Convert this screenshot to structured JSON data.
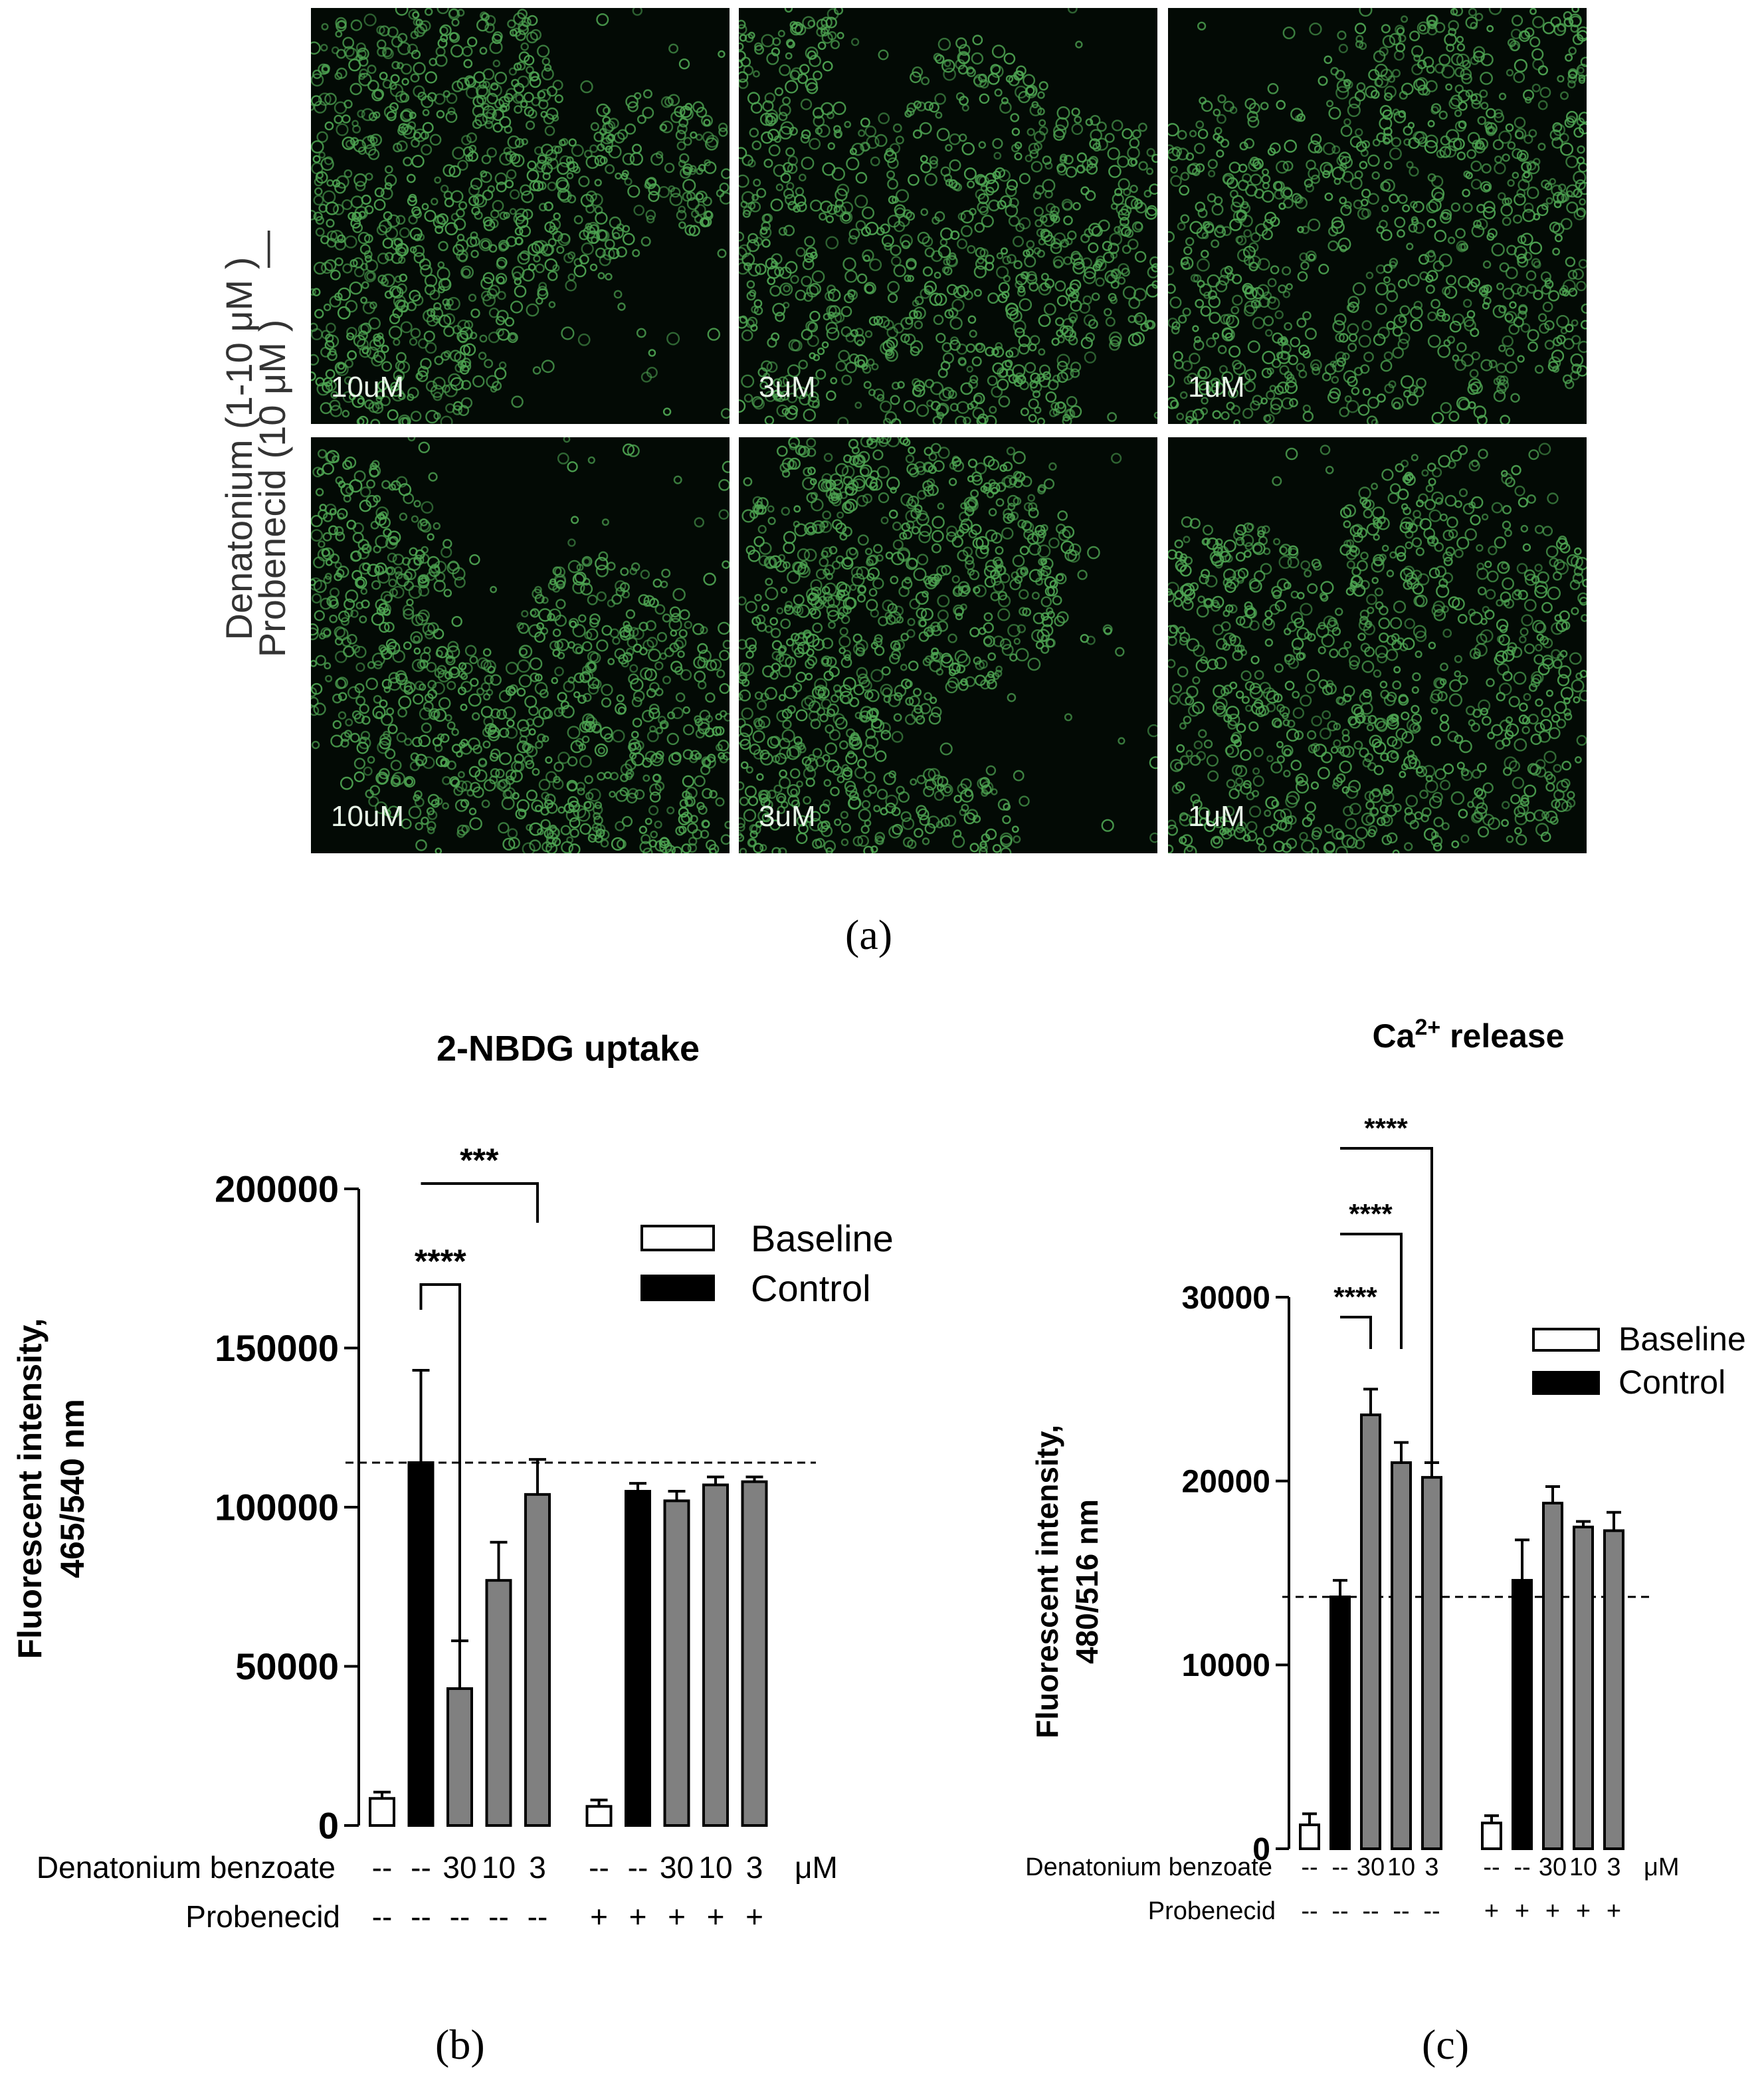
{
  "panel_a": {
    "letter": "(a)",
    "row_label_top_1": "Denatonium (1-10 μM )",
    "row_label_top_2": "—",
    "row_label_bottom": "Probenecid (10 μM )",
    "tiles": [
      {
        "label": "10uM"
      },
      {
        "label": "3uM"
      },
      {
        "label": "1uM"
      },
      {
        "label": "10uM"
      },
      {
        "label": "3uM"
      },
      {
        "label": "1uM"
      }
    ],
    "colors": {
      "fluor": "#4fa653",
      "bg": "#030a05"
    }
  },
  "panel_b": {
    "letter": "(b)"
  },
  "panel_c": {
    "letter": "(c)"
  },
  "chart_data": [
    {
      "type": "bar",
      "title": "2-NBDG uptake",
      "ylabel_line1": "Fluorescent intensity,",
      "ylabel_line2": "465/540 nm",
      "ylim": [
        0,
        200000
      ],
      "yticks": [
        0,
        50000,
        100000,
        150000,
        200000
      ],
      "ytick_labels": [
        "0",
        "50000",
        "100000",
        "150000",
        "200000"
      ],
      "legend": [
        {
          "name": "Baseline",
          "fill": "#ffffff"
        },
        {
          "name": "Control",
          "fill": "#000000"
        }
      ],
      "bars": [
        {
          "value": 8500,
          "err": 2000,
          "kind": "baseline"
        },
        {
          "value": 114000,
          "err": 29000,
          "kind": "control"
        },
        {
          "value": 43000,
          "err": 15000,
          "kind": "treated"
        },
        {
          "value": 77000,
          "err": 12000,
          "kind": "treated"
        },
        {
          "value": 104000,
          "err": 11000,
          "kind": "treated"
        },
        {
          "value": 6000,
          "err": 2000,
          "kind": "baseline"
        },
        {
          "value": 105000,
          "err": 2500,
          "kind": "control"
        },
        {
          "value": 102000,
          "err": 3000,
          "kind": "treated"
        },
        {
          "value": 107000,
          "err": 2500,
          "kind": "treated"
        },
        {
          "value": 108000,
          "err": 1500,
          "kind": "treated"
        }
      ],
      "reference_line": 114000,
      "row1_label": "Denatonium benzoate",
      "row1_values": [
        "--",
        "--",
        "30",
        "10",
        "3",
        "--",
        "--",
        "30",
        "10",
        "3"
      ],
      "row1_unit": "μM",
      "row2_label": "Probenecid",
      "row2_values": [
        "--",
        "--",
        "--",
        "--",
        "--",
        "+",
        "+",
        "+",
        "+",
        "+"
      ],
      "significance": [
        {
          "from": 1,
          "to": 2,
          "label": "****"
        },
        {
          "from": 1,
          "to": 4,
          "label": "***"
        }
      ],
      "colors": {
        "treated": "#808080",
        "control": "#000000",
        "baseline": "#ffffff"
      }
    },
    {
      "type": "bar",
      "title": "Ca",
      "title_sup": "2+",
      "title_rest": " release",
      "ylabel_line1": "Fluorescent intensity,",
      "ylabel_line2": "480/516 nm",
      "ylim": [
        0,
        30000
      ],
      "yticks": [
        0,
        10000,
        20000,
        30000
      ],
      "ytick_labels": [
        "0",
        "10000",
        "20000",
        "30000"
      ],
      "legend": [
        {
          "name": "Baseline",
          "fill": "#ffffff"
        },
        {
          "name": "Control",
          "fill": "#000000"
        }
      ],
      "bars": [
        {
          "value": 1300,
          "err": 600,
          "kind": "baseline"
        },
        {
          "value": 13700,
          "err": 900,
          "kind": "control"
        },
        {
          "value": 23600,
          "err": 1400,
          "kind": "treated"
        },
        {
          "value": 21000,
          "err": 1100,
          "kind": "treated"
        },
        {
          "value": 20200,
          "err": 800,
          "kind": "treated"
        },
        {
          "value": 1400,
          "err": 400,
          "kind": "baseline"
        },
        {
          "value": 14600,
          "err": 2200,
          "kind": "control"
        },
        {
          "value": 18800,
          "err": 900,
          "kind": "treated"
        },
        {
          "value": 17500,
          "err": 300,
          "kind": "treated"
        },
        {
          "value": 17300,
          "err": 1000,
          "kind": "treated"
        }
      ],
      "reference_line": 13700,
      "row1_label": "Denatonium benzoate",
      "row1_values": [
        "--",
        "--",
        "30",
        "10",
        "3",
        "--",
        "--",
        "30",
        "10",
        "3"
      ],
      "row1_unit": "μM",
      "row2_label": "Probenecid",
      "row2_values": [
        "--",
        "--",
        "--",
        "--",
        "--",
        "+",
        "+",
        "+",
        "+",
        "+"
      ],
      "significance": [
        {
          "from": 1,
          "to": 2,
          "label": "****"
        },
        {
          "from": 1,
          "to": 3,
          "label": "****"
        },
        {
          "from": 1,
          "to": 4,
          "label": "****"
        }
      ],
      "colors": {
        "treated": "#808080",
        "control": "#000000",
        "baseline": "#ffffff"
      }
    }
  ]
}
